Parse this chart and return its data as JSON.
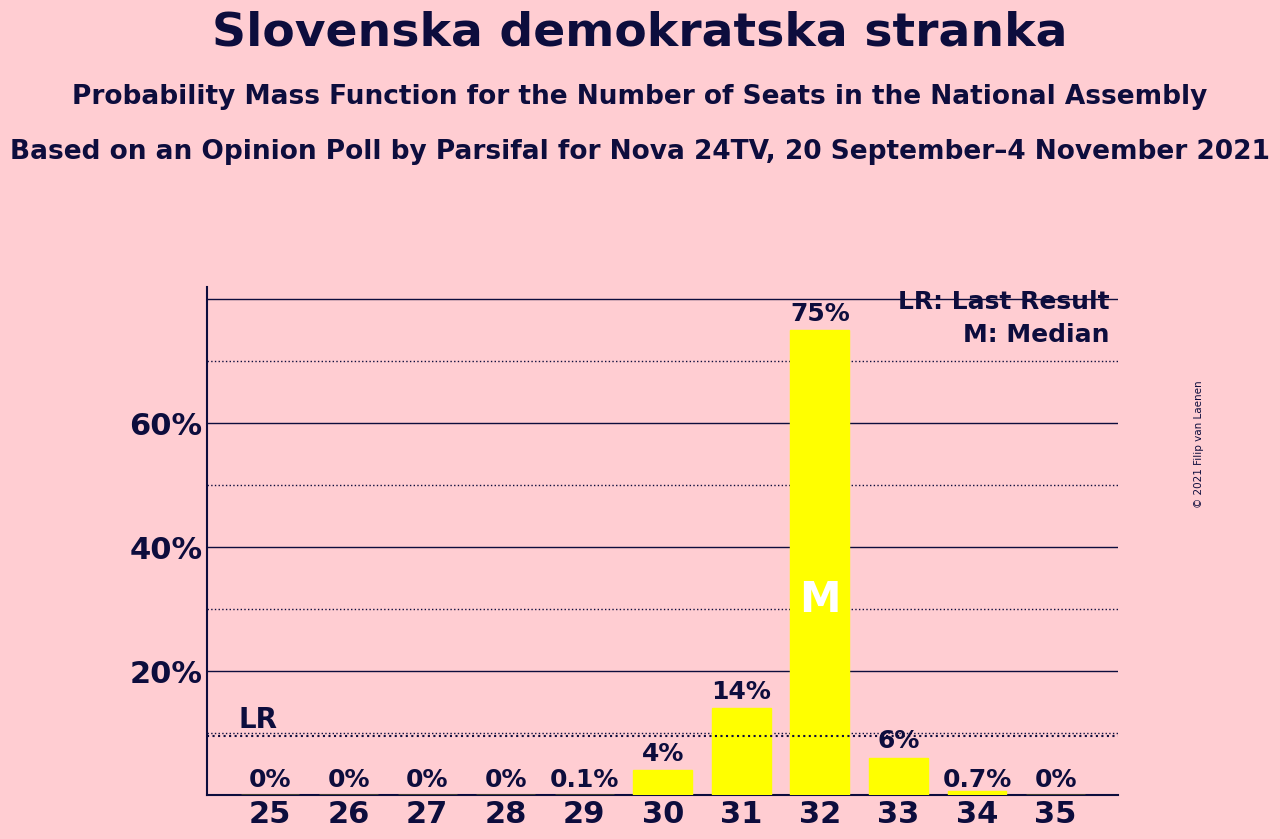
{
  "title": "Slovenska demokratska stranka",
  "subtitle1": "Probability Mass Function for the Number of Seats in the National Assembly",
  "subtitle2": "Based on an Opinion Poll by Parsifal for Nova 24TV, 20 September–4 November 2021",
  "copyright": "© 2021 Filip van Laenen",
  "seats": [
    25,
    26,
    27,
    28,
    29,
    30,
    31,
    32,
    33,
    34,
    35
  ],
  "probabilities": [
    0.0,
    0.0,
    0.0,
    0.0,
    0.001,
    0.04,
    0.14,
    0.75,
    0.06,
    0.007,
    0.0
  ],
  "prob_labels": [
    "0%",
    "0%",
    "0%",
    "0%",
    "0.1%",
    "4%",
    "14%",
    "75%",
    "6%",
    "0.7%",
    "0%"
  ],
  "bar_color": "#FFFF00",
  "background_color": "#FFCDD2",
  "text_color": "#0D0D3D",
  "solid_gridlines": [
    0.2,
    0.4,
    0.6,
    0.8
  ],
  "dotted_gridlines": [
    0.1,
    0.3,
    0.5,
    0.7
  ],
  "lr_value": 0.095,
  "median_seat": 32,
  "legend_lr": "LR: Last Result",
  "legend_m": "M: Median",
  "title_fontsize": 34,
  "subtitle1_fontsize": 19,
  "subtitle2_fontsize": 19,
  "axis_label_fontsize": 22,
  "bar_label_fontsize": 18,
  "lr_label_fontsize": 20,
  "median_fontsize": 30,
  "legend_fontsize": 18
}
